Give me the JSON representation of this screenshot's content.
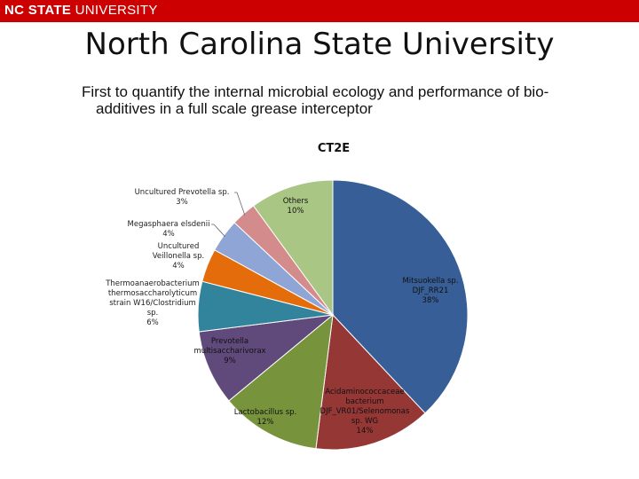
{
  "banner": {
    "brand_bold": "NC STATE",
    "brand_rest": "UNIVERSITY",
    "color": "#cc0000"
  },
  "slide": {
    "title": "North Carolina State University",
    "subtitle_line1": "First to quantify the internal microbial ecology and performance of bio-",
    "subtitle_line2": "additives in a full scale grease interceptor"
  },
  "chart_data": {
    "type": "pie",
    "title": "CT2E",
    "slices": [
      {
        "label": [
          "Mitsuokella sp.",
          "DJF_RR21"
        ],
        "value": 38,
        "pct_text": "38%",
        "color": "#375e97"
      },
      {
        "label": [
          "Acidaminococcaceae",
          "bacterium",
          "DJF_VR01/Selenomonas",
          "sp. WG"
        ],
        "value": 14,
        "pct_text": "14%",
        "color": "#953735"
      },
      {
        "label": [
          "Lactobacillus sp."
        ],
        "value": 12,
        "pct_text": "12%",
        "color": "#77933c"
      },
      {
        "label": [
          "Prevotella",
          "multisaccharivorax"
        ],
        "value": 9,
        "pct_text": "9%",
        "color": "#604a7b"
      },
      {
        "label": [
          "Thermoanaerobacterium",
          "thermosaccharolyticum",
          "strain W16/Clostridium",
          "sp."
        ],
        "value": 6,
        "pct_text": "6%",
        "color": "#31849b"
      },
      {
        "label": [
          "Uncultured",
          "Veillonella sp."
        ],
        "value": 4,
        "pct_text": "4%",
        "color": "#e46c0a"
      },
      {
        "label": [
          "Megasphaera elsdenii"
        ],
        "value": 4,
        "pct_text": "4%",
        "color": "#8ea5d6"
      },
      {
        "label": [
          "Uncultured Prevotella sp."
        ],
        "value": 3,
        "pct_text": "3%",
        "color": "#d38b8b"
      },
      {
        "label": [
          "Others"
        ],
        "value": 10,
        "pct_text": "10%",
        "color": "#a9c684"
      }
    ]
  }
}
